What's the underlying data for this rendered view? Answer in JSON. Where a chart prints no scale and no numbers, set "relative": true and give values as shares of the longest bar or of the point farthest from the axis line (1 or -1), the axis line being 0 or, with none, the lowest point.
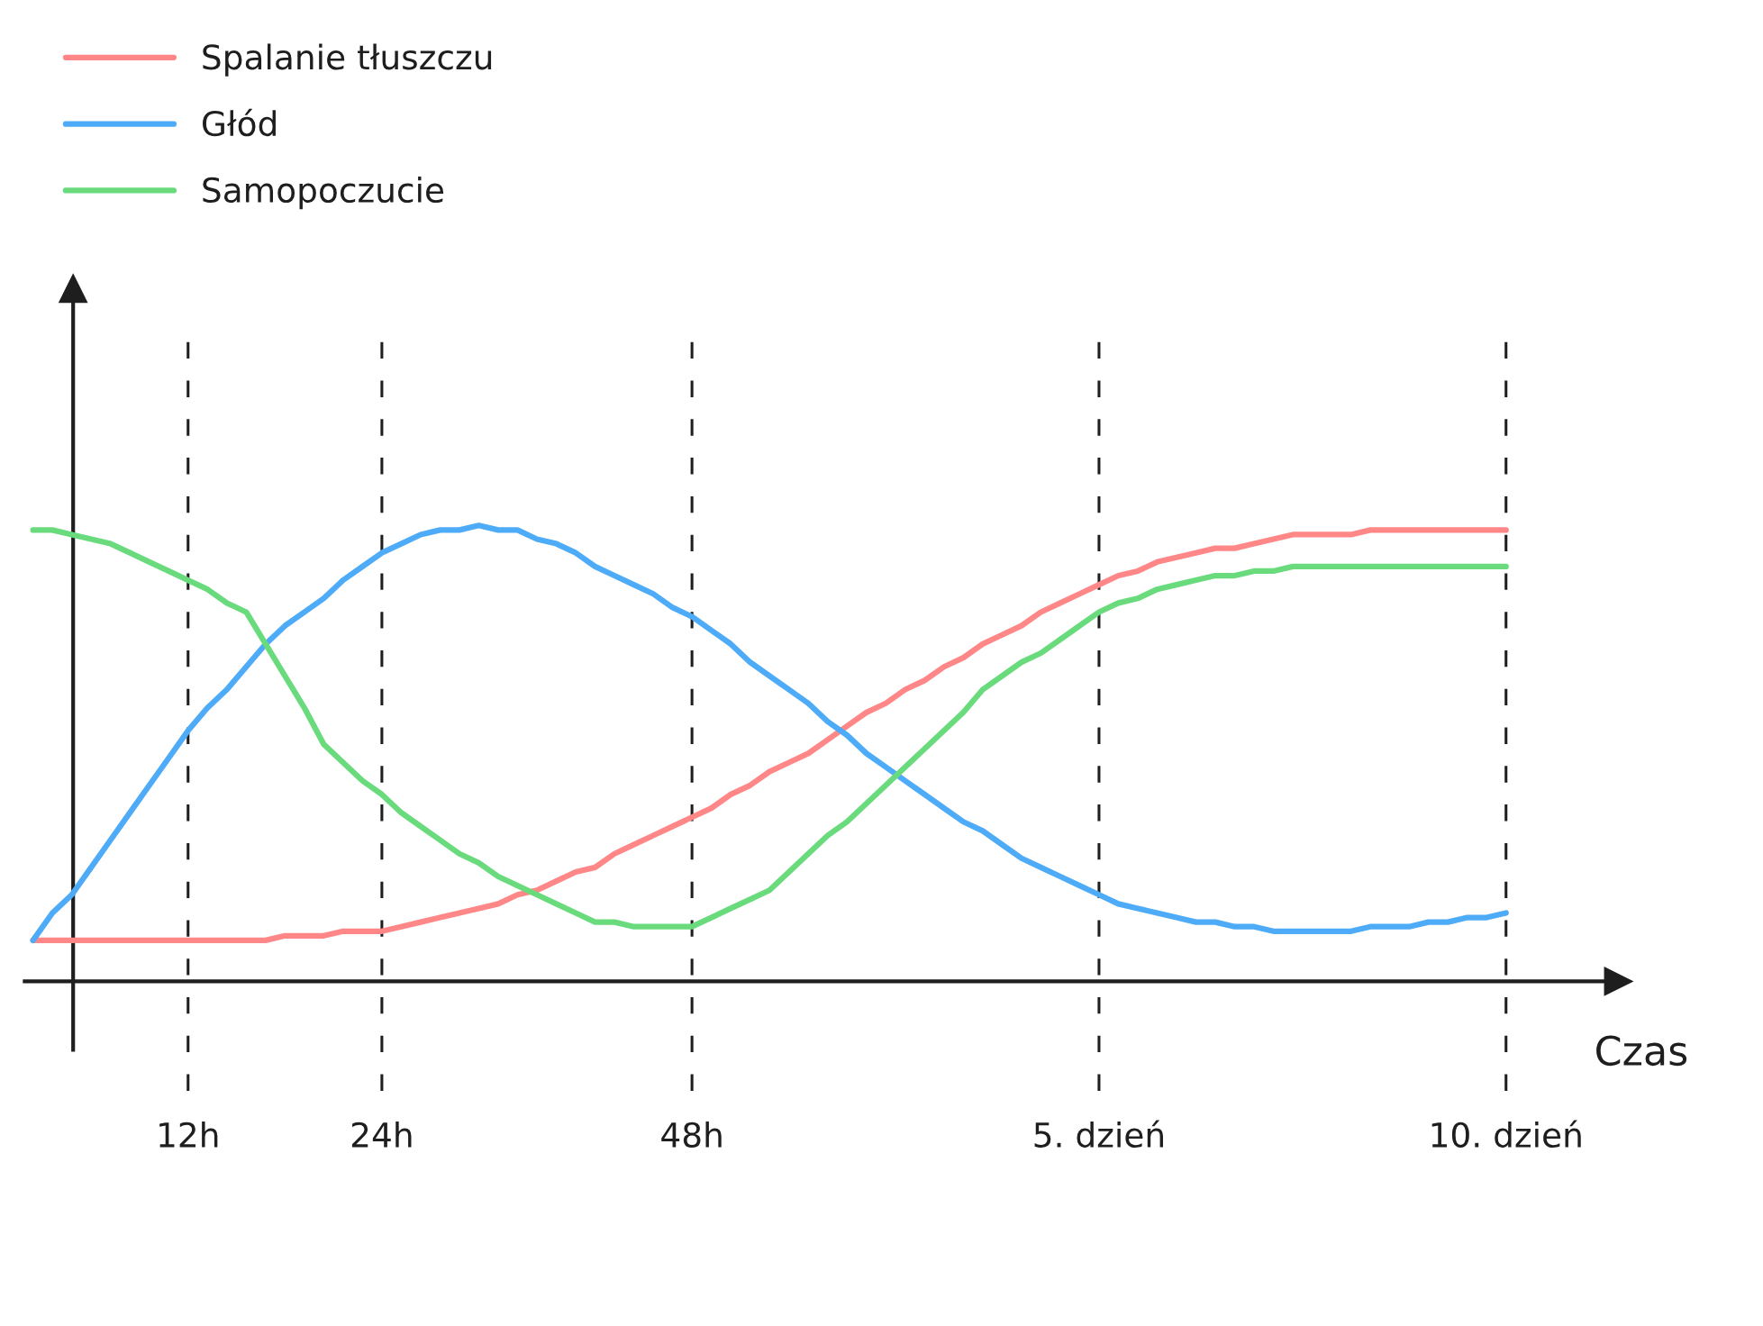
{
  "chart_data": {
    "type": "line",
    "relative": true,
    "xlabel": "Czas",
    "legend": "top left",
    "grid": "x",
    "categories": [
      null,
      null,
      null,
      null,
      null,
      null,
      null,
      null,
      "12h",
      null,
      null,
      null,
      null,
      null,
      null,
      null,
      null,
      null,
      "24h",
      null,
      null,
      null,
      null,
      null,
      null,
      null,
      null,
      null,
      null,
      null,
      null,
      null,
      null,
      null,
      "48h",
      null,
      null,
      null,
      null,
      null,
      null,
      null,
      null,
      null,
      null,
      null,
      null,
      null,
      null,
      null,
      null,
      null,
      null,
      null,
      null,
      "5. dzień",
      null,
      null,
      null,
      null,
      null,
      null,
      null,
      null,
      null,
      null,
      null,
      null,
      null,
      null,
      null,
      null,
      null,
      null,
      null,
      null,
      "10. dzień"
    ],
    "series": [
      {
        "name": "Spalanie tłuszczu",
        "color": "#ff8787",
        "values": [
          0.09,
          0.09,
          0.09,
          0.09,
          0.09,
          0.09,
          0.09,
          0.09,
          0.09,
          0.09,
          0.09,
          0.09,
          0.09,
          0.1,
          0.1,
          0.1,
          0.11,
          0.11,
          0.11,
          0.12,
          0.13,
          0.14,
          0.15,
          0.16,
          0.17,
          0.19,
          0.2,
          0.22,
          0.24,
          0.25,
          0.28,
          0.3,
          0.32,
          0.34,
          0.36,
          0.38,
          0.41,
          0.43,
          0.46,
          0.48,
          0.5,
          0.53,
          0.56,
          0.59,
          0.61,
          0.64,
          0.66,
          0.69,
          0.71,
          0.74,
          0.76,
          0.78,
          0.81,
          0.83,
          0.85,
          0.87,
          0.89,
          0.9,
          0.92,
          0.93,
          0.94,
          0.95,
          0.95,
          0.96,
          0.97,
          0.98,
          0.98,
          0.98,
          0.98,
          0.99,
          0.99,
          0.99,
          0.99,
          0.99,
          0.99,
          0.99,
          0.99
        ]
      },
      {
        "name": "Głód",
        "color": "#4dabf7",
        "values": [
          0.09,
          0.15,
          0.19,
          0.25,
          0.31,
          0.37,
          0.43,
          0.49,
          0.55,
          0.6,
          0.64,
          0.69,
          0.74,
          0.78,
          0.81,
          0.84,
          0.88,
          0.91,
          0.94,
          0.96,
          0.98,
          0.99,
          0.99,
          1.0,
          0.99,
          0.99,
          0.97,
          0.96,
          0.94,
          0.91,
          0.89,
          0.87,
          0.85,
          0.82,
          0.8,
          0.77,
          0.74,
          0.7,
          0.67,
          0.64,
          0.61,
          0.57,
          0.54,
          0.5,
          0.47,
          0.44,
          0.41,
          0.38,
          0.35,
          0.33,
          0.3,
          0.27,
          0.25,
          0.23,
          0.21,
          0.19,
          0.17,
          0.16,
          0.15,
          0.14,
          0.13,
          0.13,
          0.12,
          0.12,
          0.11,
          0.11,
          0.11,
          0.11,
          0.11,
          0.12,
          0.12,
          0.12,
          0.13,
          0.13,
          0.14,
          0.14,
          0.15
        ]
      },
      {
        "name": "Samopoczucie",
        "color": "#69db7c",
        "values": [
          0.99,
          0.99,
          0.98,
          0.97,
          0.96,
          0.94,
          0.92,
          0.9,
          0.88,
          0.86,
          0.83,
          0.81,
          0.74,
          0.67,
          0.6,
          0.52,
          0.48,
          0.44,
          0.41,
          0.37,
          0.34,
          0.31,
          0.28,
          0.26,
          0.23,
          0.21,
          0.19,
          0.17,
          0.15,
          0.13,
          0.13,
          0.12,
          0.12,
          0.12,
          0.12,
          0.14,
          0.16,
          0.18,
          0.2,
          0.24,
          0.28,
          0.32,
          0.35,
          0.39,
          0.43,
          0.47,
          0.51,
          0.55,
          0.59,
          0.64,
          0.67,
          0.7,
          0.72,
          0.75,
          0.78,
          0.81,
          0.83,
          0.84,
          0.86,
          0.87,
          0.88,
          0.89,
          0.89,
          0.9,
          0.9,
          0.91,
          0.91,
          0.91,
          0.91,
          0.91,
          0.91,
          0.91,
          0.91,
          0.91,
          0.91,
          0.91,
          0.91
        ]
      }
    ]
  }
}
